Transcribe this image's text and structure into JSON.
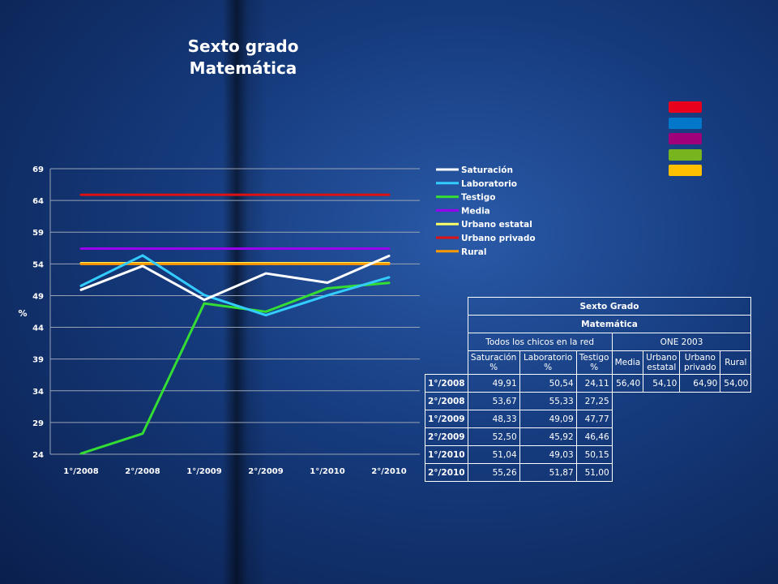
{
  "chart_data": {
    "type": "line",
    "title": "Sexto grado Matemática",
    "title_lines": [
      "Sexto grado",
      "Matemática"
    ],
    "ylabel": "%",
    "xlabel": "",
    "ylim": [
      24,
      69
    ],
    "yticks": [
      "69",
      "64",
      "59",
      "54",
      "49",
      "44",
      "39",
      "34",
      "29",
      "24"
    ],
    "categories": [
      "1°/2008",
      "2°/2008",
      "1°/2009",
      "2°/2009",
      "1°/2010",
      "2°/2010"
    ],
    "grid": true,
    "legend_position": "right",
    "series": [
      {
        "name": "Saturación",
        "color": "#ffffff",
        "values": [
          49.91,
          53.67,
          48.33,
          52.5,
          51.04,
          55.26
        ]
      },
      {
        "name": "Laboratorio",
        "color": "#33ccff",
        "values": [
          50.54,
          55.33,
          49.09,
          45.92,
          49.03,
          51.87
        ]
      },
      {
        "name": "Testigo",
        "color": "#33dd33",
        "values": [
          24.11,
          27.25,
          47.77,
          46.46,
          50.15,
          51.0
        ]
      },
      {
        "name": "Media",
        "color": "#9900ee",
        "values": [
          56.4,
          56.4,
          56.4,
          56.4,
          56.4,
          56.4
        ]
      },
      {
        "name": "Urbano estatal",
        "color": "#ffff66",
        "values": [
          54.1,
          54.1,
          54.1,
          54.1,
          54.1,
          54.1
        ]
      },
      {
        "name": "Urbano privado",
        "color": "#dd1111",
        "values": [
          64.9,
          64.9,
          64.9,
          64.9,
          64.9,
          64.9
        ]
      },
      {
        "name": "Rural",
        "color": "#ff9900",
        "values": [
          54.0,
          54.0,
          54.0,
          54.0,
          54.0,
          54.0
        ]
      }
    ]
  },
  "swatch_colors": [
    "#e8001c",
    "#0077c8",
    "#a0007a",
    "#78b41e",
    "#ffc000"
  ],
  "table": {
    "title": "Sexto Grado",
    "subject": "Matemática",
    "group1": "Todos los chicos en la red",
    "group2": "ONE 2003",
    "col_saturacion": "Saturación %",
    "col_laboratorio": "Laboratorio %",
    "col_testigo": "Testigo %",
    "col_media": "Media",
    "col_urbano_estatal": "Urbano estatal",
    "col_urbano_privado": "Urbano privado",
    "col_rural": "Rural",
    "rows": [
      {
        "label": "1°/2008",
        "sat": "49,91",
        "lab": "50,54",
        "tes": "24,11"
      },
      {
        "label": "2°/2008",
        "sat": "53,67",
        "lab": "55,33",
        "tes": "27,25"
      },
      {
        "label": "1°/2009",
        "sat": "48,33",
        "lab": "49,09",
        "tes": "47,77"
      },
      {
        "label": "2°/2009",
        "sat": "52,50",
        "lab": "45,92",
        "tes": "46,46"
      },
      {
        "label": "1°/2010",
        "sat": "51,04",
        "lab": "49,03",
        "tes": "50,15"
      },
      {
        "label": "2°/2010",
        "sat": "55,26",
        "lab": "51,87",
        "tes": "51,00"
      }
    ],
    "one": {
      "media": "56,40",
      "urbano_estatal": "54,10",
      "urbano_privado": "64,90",
      "rural": "54,00"
    }
  }
}
